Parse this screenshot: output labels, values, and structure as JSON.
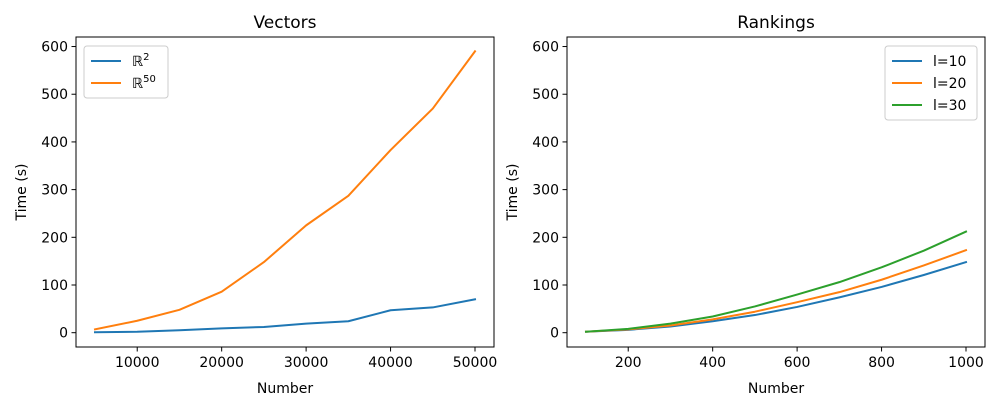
{
  "chart_data": [
    {
      "type": "line",
      "title": "Vectors",
      "xlabel": "Number",
      "ylabel": "Time (s)",
      "xlim": [
        2750,
        52250
      ],
      "ylim": [
        -30,
        620
      ],
      "xticks": [
        10000,
        20000,
        30000,
        40000,
        50000
      ],
      "yticks": [
        0,
        100,
        200,
        300,
        400,
        500,
        600
      ],
      "legend_position": "top-left",
      "x": [
        5000,
        10000,
        15000,
        20000,
        25000,
        30000,
        35000,
        40000,
        45000,
        50000
      ],
      "series": [
        {
          "name": "ℝ",
          "superscript": "2",
          "color": "#1f77b4",
          "values": [
            1,
            2,
            5,
            9,
            12,
            19,
            24,
            47,
            53,
            70
          ]
        },
        {
          "name": "ℝ",
          "superscript": "50",
          "color": "#ff7f0e",
          "values": [
            7,
            25,
            48,
            86,
            148,
            225,
            287,
            383,
            470,
            590
          ]
        }
      ]
    },
    {
      "type": "line",
      "title": "Rankings",
      "xlabel": "Number",
      "ylabel": "Time (s)",
      "xlim": [
        55,
        1045
      ],
      "ylim": [
        -30,
        620
      ],
      "xticks": [
        200,
        400,
        600,
        800,
        1000
      ],
      "yticks": [
        0,
        100,
        200,
        300,
        400,
        500,
        600
      ],
      "legend_position": "top-right",
      "x": [
        100,
        200,
        300,
        400,
        500,
        600,
        700,
        800,
        900,
        1000
      ],
      "series": [
        {
          "name": "l=10",
          "color": "#1f77b4",
          "values": [
            2,
            6,
            13,
            24,
            37,
            54,
            74,
            96,
            121,
            148
          ]
        },
        {
          "name": "l=20",
          "color": "#ff7f0e",
          "values": [
            2,
            7,
            15,
            28,
            44,
            64,
            85,
            111,
            141,
            173
          ]
        },
        {
          "name": "l=30",
          "color": "#2ca02c",
          "values": [
            2,
            8,
            19,
            34,
            55,
            80,
            106,
            137,
            172,
            212
          ]
        }
      ]
    }
  ]
}
